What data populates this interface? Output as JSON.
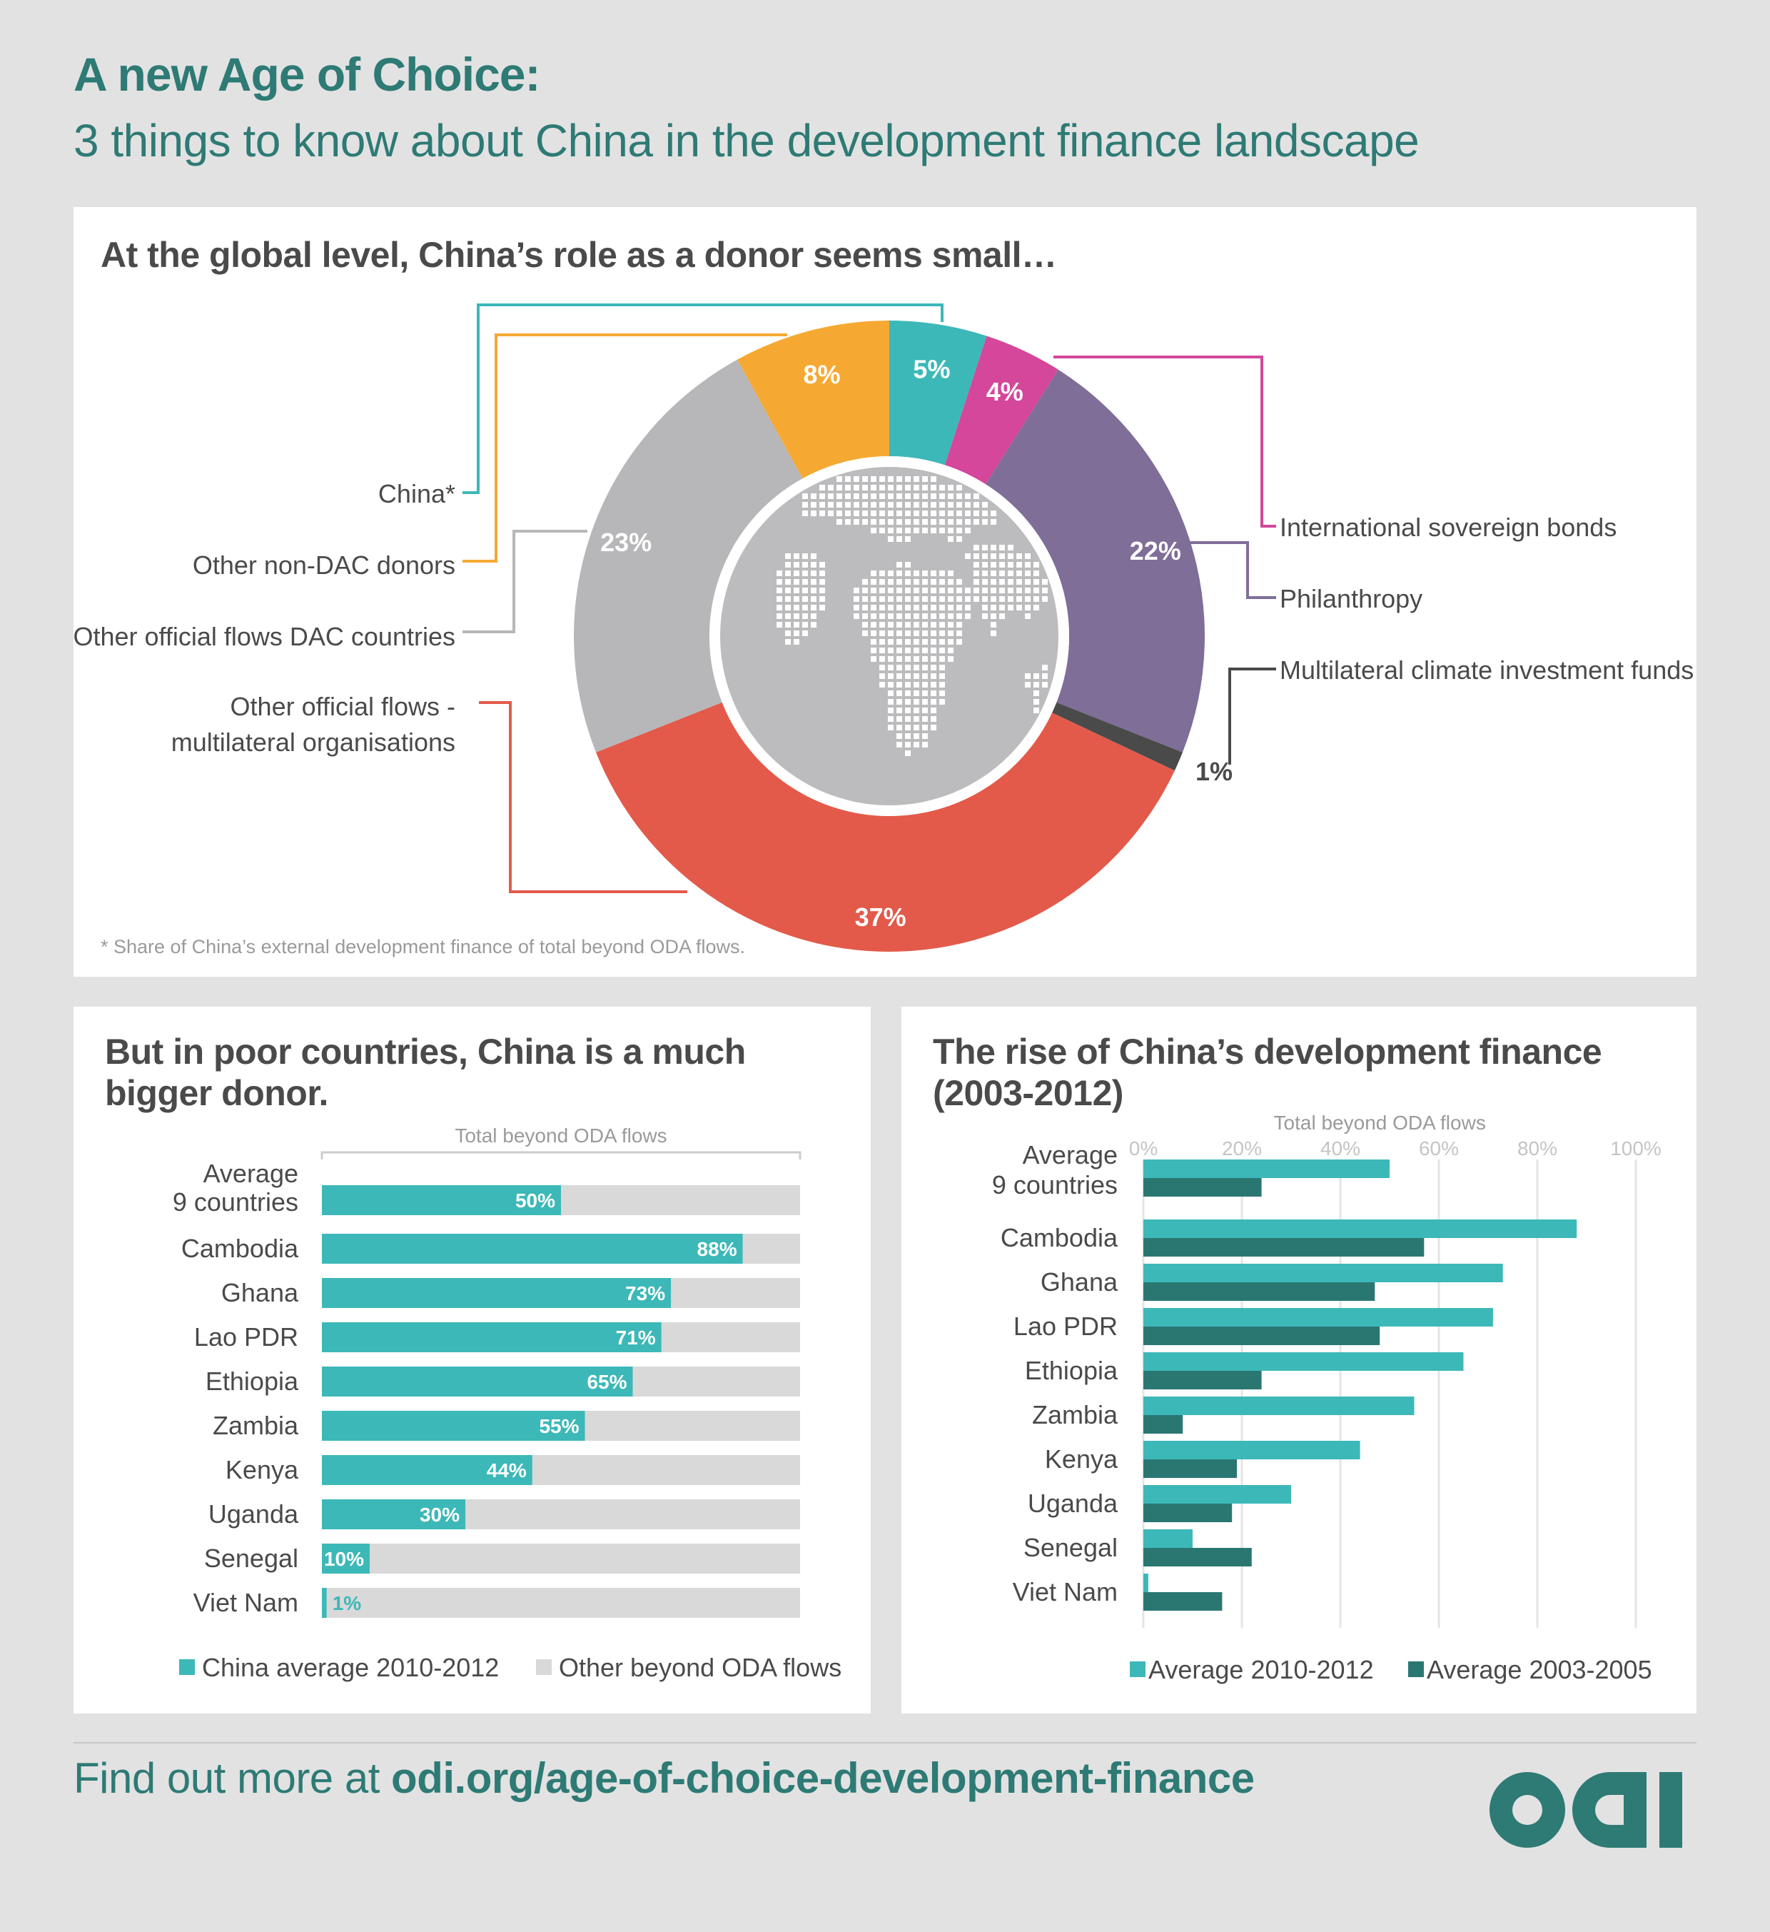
{
  "header": {
    "title": "A new Age of Choice:",
    "subtitle": "3 things to know about China in the development finance landscape"
  },
  "panel_top": {
    "heading": "At the global level, China’s role as a donor seems small…",
    "footnote": "* Share of China’s external development finance of total beyond ODA flows."
  },
  "panel_bottom_left": {
    "heading_line1": "But in poor countries, China is a much",
    "heading_line2": "bigger donor."
  },
  "panel_bottom_right": {
    "heading_line1": "The rise of China’s development finance",
    "heading_line2": "(2003-2012)"
  },
  "footer": {
    "prefix": "Find out more at ",
    "link": "odi.org/age-of-choice-development-finance"
  },
  "logo": {
    "icon": "odi-logo-icon",
    "color": "#2e7a75"
  },
  "chart_data": [
    {
      "type": "pie",
      "donut": true,
      "center_icon": "world-map-icon",
      "slices": [
        {
          "label": "China*",
          "value": 5,
          "value_label": "5%",
          "color": "#3db8b8"
        },
        {
          "label": "International sovereign bonds",
          "value": 4,
          "value_label": "4%",
          "color": "#d4479a"
        },
        {
          "label": "Philanthropy",
          "value": 22,
          "value_label": "22%",
          "color": "#7f6e98"
        },
        {
          "label": "Multilateral climate investment funds",
          "value": 1,
          "value_label": "1%",
          "color": "#4a4a4a"
        },
        {
          "label": "Other official flows - multilateral organisations",
          "label_lines": [
            "Other official flows -",
            "multilateral organisations"
          ],
          "value": 37,
          "value_label": "37%",
          "color": "#e35a4a"
        },
        {
          "label": "Other official flows DAC countries",
          "value": 23,
          "value_label": "23%",
          "color": "#b7b7b9"
        },
        {
          "label": "Other non-DAC donors",
          "value": 8,
          "value_label": "8%",
          "color": "#f5a932"
        }
      ]
    },
    {
      "type": "bar",
      "orientation": "horizontal",
      "stacked": true,
      "title": "Total beyond ODA flows",
      "categories": [
        [
          "Average",
          "9 countries"
        ],
        [
          "Cambodia"
        ],
        [
          "Ghana"
        ],
        [
          "Lao PDR"
        ],
        [
          "Ethiopia"
        ],
        [
          "Zambia"
        ],
        [
          "Kenya"
        ],
        [
          "Uganda"
        ],
        [
          "Senegal"
        ],
        [
          "Viet Nam"
        ]
      ],
      "series": [
        {
          "name": "China average 2010-2012",
          "color": "#3db8b8",
          "values": [
            50,
            88,
            73,
            71,
            65,
            55,
            44,
            30,
            10,
            1
          ],
          "labels": [
            "50%",
            "88%",
            "73%",
            "71%",
            "65%",
            "55%",
            "44%",
            "30%",
            "10%",
            "1%"
          ]
        },
        {
          "name": "Other beyond ODA flows",
          "color": "#d9d9d9",
          "values": [
            50,
            12,
            27,
            29,
            35,
            45,
            56,
            70,
            90,
            99
          ]
        }
      ],
      "xlim": [
        0,
        100
      ],
      "legend": "bottom"
    },
    {
      "type": "bar",
      "orientation": "horizontal",
      "title": "Total beyond ODA flows",
      "categories": [
        [
          "Average",
          "9 countries"
        ],
        [
          "Cambodia"
        ],
        [
          "Ghana"
        ],
        [
          "Lao PDR"
        ],
        [
          "Ethiopia"
        ],
        [
          "Zambia"
        ],
        [
          "Kenya"
        ],
        [
          "Uganda"
        ],
        [
          "Senegal"
        ],
        [
          "Viet Nam"
        ]
      ],
      "xticks": [
        "0%",
        "20%",
        "40%",
        "60%",
        "80%",
        "100%"
      ],
      "xlim": [
        0,
        100
      ],
      "grid": true,
      "series": [
        {
          "name": "Average 2010-2012",
          "color": "#3db8b8",
          "values": [
            50,
            88,
            73,
            71,
            65,
            55,
            44,
            30,
            10,
            1
          ]
        },
        {
          "name": "Average 2003-2005",
          "color": "#2a7772",
          "values": [
            24,
            57,
            47,
            48,
            24,
            8,
            19,
            18,
            22,
            16
          ]
        }
      ],
      "legend": "bottom"
    }
  ]
}
